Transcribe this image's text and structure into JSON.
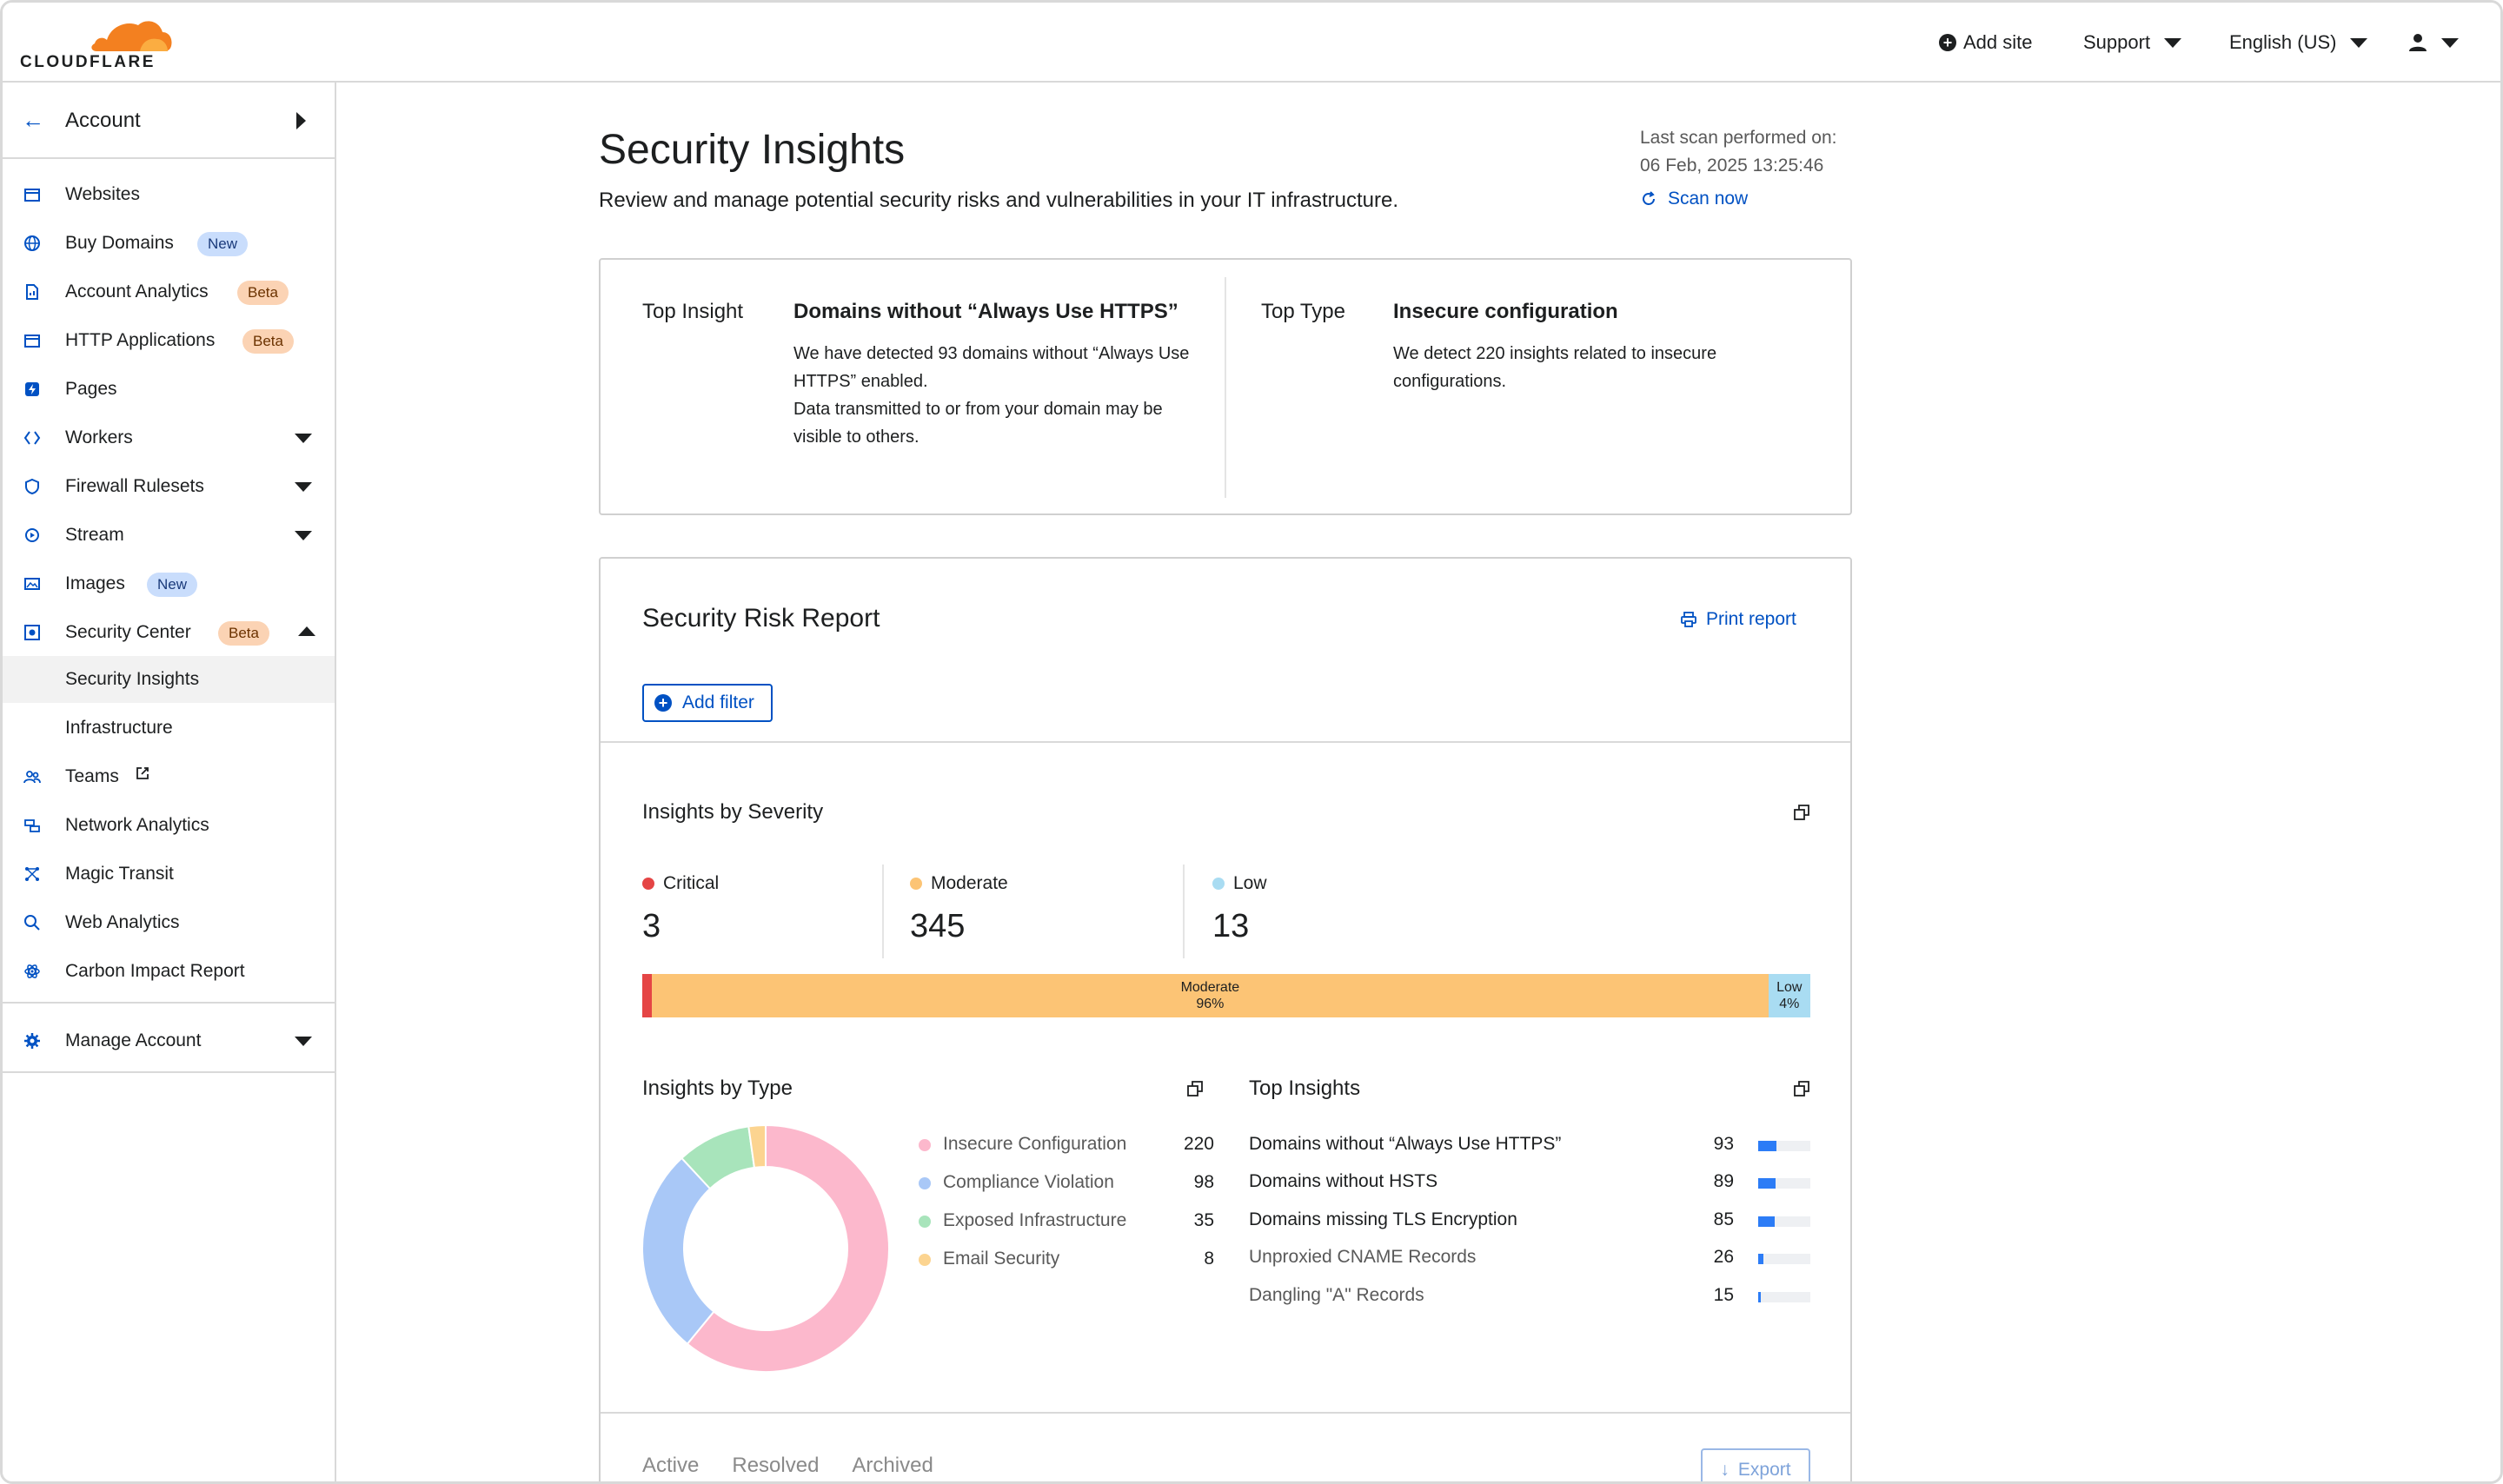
{
  "brand": {
    "logo_text": "CLOUDFLARE",
    "logo_color": "#f38020"
  },
  "topbar": {
    "add_site": "Add site",
    "support": "Support",
    "language": "English (US)"
  },
  "sidebar": {
    "account_label": "Account",
    "items": [
      {
        "label": "Websites",
        "icon": "browser-icon"
      },
      {
        "label": "Buy Domains",
        "icon": "globe-icon",
        "badge": "New"
      },
      {
        "label": "Account Analytics",
        "icon": "document-chart-icon",
        "badge": "Beta"
      },
      {
        "label": "HTTP Applications",
        "icon": "browser-icon",
        "badge": "Beta"
      },
      {
        "label": "Pages",
        "icon": "lightning-icon"
      },
      {
        "label": "Workers",
        "icon": "workers-icon"
      },
      {
        "label": "Firewall Rulesets",
        "icon": "shield-icon"
      },
      {
        "label": "Stream",
        "icon": "stream-icon"
      },
      {
        "label": "Images",
        "icon": "image-icon",
        "badge": "New"
      },
      {
        "label": "Security Center",
        "icon": "security-center-icon",
        "badge": "Beta"
      },
      {
        "label": "Security Insights"
      },
      {
        "label": "Infrastructure"
      },
      {
        "label": "Teams",
        "icon": "users-icon"
      },
      {
        "label": "Network Analytics",
        "icon": "network-icon"
      },
      {
        "label": "Magic Transit",
        "icon": "magic-transit-icon"
      },
      {
        "label": "Web Analytics",
        "icon": "magnifier-chart-icon"
      },
      {
        "label": "Carbon Impact Report",
        "icon": "atom-icon"
      }
    ],
    "manage_account": "Manage Account"
  },
  "page": {
    "title": "Security Insights",
    "subtitle": "Review and manage potential security risks and vulnerabilities in your IT infrastructure.",
    "scan_label": "Last scan performed on:",
    "scan_time": "06 Feb, 2025 13:25:46",
    "scan_now": "Scan now"
  },
  "top_insight": {
    "label": "Top Insight",
    "title": "Domains without “Always Use HTTPS”",
    "desc_1": "We have detected 93 domains without “Always Use HTTPS” enabled.",
    "desc_2": "Data transmitted to or from your domain may be visible to others."
  },
  "top_type": {
    "label": "Top Type",
    "title": "Insecure configuration",
    "desc": "We detect 220 insights related to insecure configurations."
  },
  "report": {
    "title": "Security Risk Report",
    "print": "Print report",
    "add_filter": "Add filter",
    "severity_title": "Insights by Severity",
    "severity": [
      {
        "label": "Critical",
        "value": "3",
        "color": "#e54545"
      },
      {
        "label": "Moderate",
        "value": "345",
        "color": "#fcc475"
      },
      {
        "label": "Low",
        "value": "13",
        "color": "#a9dcf2"
      }
    ],
    "bar_moderate_label": "Moderate",
    "bar_moderate_pct": "96%",
    "bar_low_label": "Low",
    "bar_low_pct": "4%",
    "type_title": "Insights by Type",
    "types": [
      {
        "label": "Insecure Configuration",
        "value": "220",
        "color": "#fcb8cc"
      },
      {
        "label": "Compliance Violation",
        "value": "98",
        "color": "#a9c8f7"
      },
      {
        "label": "Exposed Infrastructure",
        "value": "35",
        "color": "#a8e4bb"
      },
      {
        "label": "Email Security",
        "value": "8",
        "color": "#fcd490"
      }
    ],
    "top_title": "Top Insights",
    "top": [
      {
        "label": "Domains without “Always Use HTTPS”",
        "value": "93"
      },
      {
        "label": "Domains without HSTS",
        "value": "89"
      },
      {
        "label": "Domains missing TLS Encryption",
        "value": "85"
      },
      {
        "label": "Unproxied CNAME Records",
        "value": "26"
      },
      {
        "label": "Dangling \"A\" Records",
        "value": "15"
      }
    ],
    "tabs": [
      "Active",
      "Resolved",
      "Archived"
    ],
    "export": "Export"
  },
  "chart_data": [
    {
      "type": "bar",
      "title": "Insights by Severity",
      "categories": [
        "Critical",
        "Moderate",
        "Low"
      ],
      "values": [
        3,
        345,
        13
      ]
    },
    {
      "type": "pie",
      "title": "Insights by Type",
      "categories": [
        "Insecure Configuration",
        "Compliance Violation",
        "Exposed Infrastructure",
        "Email Security"
      ],
      "values": [
        220,
        98,
        35,
        8
      ]
    },
    {
      "type": "bar",
      "title": "Top Insights",
      "categories": [
        "Domains without “Always Use HTTPS”",
        "Domains without HSTS",
        "Domains missing TLS Encryption",
        "Unproxied CNAME Records",
        "Dangling \"A\" Records"
      ],
      "values": [
        93,
        89,
        85,
        26,
        15
      ]
    }
  ]
}
